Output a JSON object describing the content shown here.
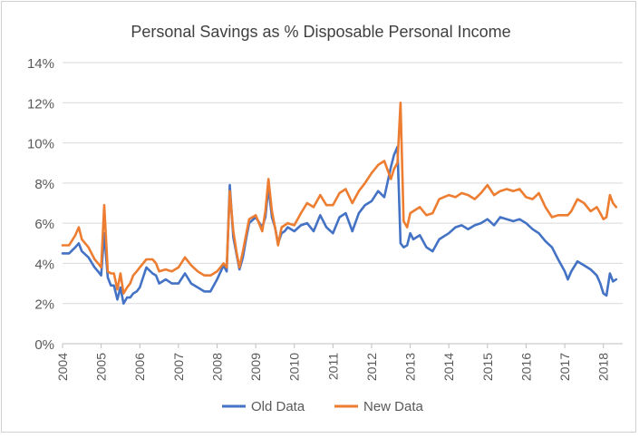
{
  "chart_data": {
    "type": "line",
    "title": "Personal Savings as % Disposable Personal Income",
    "xlabel": "",
    "ylabel": "",
    "xlim": [
      2004.0,
      2018.5
    ],
    "ylim": [
      0,
      14
    ],
    "y_ticks": [
      "0%",
      "2%",
      "4%",
      "6%",
      "8%",
      "10%",
      "12%",
      "14%"
    ],
    "x_ticks": [
      "2004",
      "2005",
      "2006",
      "2007",
      "2008",
      "2009",
      "2010",
      "2011",
      "2012",
      "2013",
      "2014",
      "2015",
      "2016",
      "2017",
      "2018"
    ],
    "grid": "horizontal",
    "legend_position": "bottom",
    "series": [
      {
        "name": "Old Data",
        "color": "#4472c4",
        "x": [
          2004.0,
          2004.17,
          2004.33,
          2004.42,
          2004.5,
          2004.67,
          2004.83,
          2004.92,
          2005.0,
          2005.08,
          2005.17,
          2005.25,
          2005.33,
          2005.42,
          2005.5,
          2005.58,
          2005.67,
          2005.75,
          2005.83,
          2005.92,
          2006.0,
          2006.17,
          2006.33,
          2006.42,
          2006.5,
          2006.67,
          2006.83,
          2007.0,
          2007.17,
          2007.33,
          2007.5,
          2007.67,
          2007.83,
          2008.0,
          2008.17,
          2008.25,
          2008.33,
          2008.42,
          2008.5,
          2008.58,
          2008.67,
          2008.75,
          2008.83,
          2009.0,
          2009.17,
          2009.25,
          2009.33,
          2009.42,
          2009.5,
          2009.58,
          2009.67,
          2009.75,
          2009.83,
          2010.0,
          2010.17,
          2010.33,
          2010.5,
          2010.67,
          2010.83,
          2011.0,
          2011.17,
          2011.33,
          2011.5,
          2011.67,
          2011.83,
          2012.0,
          2012.17,
          2012.33,
          2012.5,
          2012.58,
          2012.67,
          2012.75,
          2012.83,
          2012.92,
          2013.0,
          2013.08,
          2013.25,
          2013.42,
          2013.58,
          2013.75,
          2014.0,
          2014.17,
          2014.33,
          2014.5,
          2014.67,
          2014.83,
          2015.0,
          2015.17,
          2015.33,
          2015.5,
          2015.67,
          2015.83,
          2016.0,
          2016.17,
          2016.33,
          2016.5,
          2016.67,
          2016.83,
          2017.0,
          2017.08,
          2017.17,
          2017.33,
          2017.5,
          2017.67,
          2017.83,
          2017.92,
          2018.0,
          2018.08,
          2018.17,
          2018.25,
          2018.33
        ],
        "values": [
          4.5,
          4.5,
          4.8,
          5.0,
          4.6,
          4.3,
          3.8,
          3.6,
          3.4,
          5.5,
          3.3,
          2.9,
          2.9,
          2.2,
          2.8,
          2.0,
          2.3,
          2.3,
          2.5,
          2.6,
          2.8,
          3.8,
          3.5,
          3.4,
          3.0,
          3.2,
          3.0,
          3.0,
          3.5,
          3.0,
          2.8,
          2.6,
          2.6,
          3.2,
          3.9,
          3.6,
          7.9,
          5.3,
          4.5,
          3.7,
          4.3,
          5.2,
          6.0,
          6.3,
          5.8,
          6.3,
          7.8,
          6.3,
          5.8,
          5.0,
          5.5,
          5.6,
          5.8,
          5.6,
          5.9,
          6.0,
          5.6,
          6.4,
          5.8,
          5.5,
          6.3,
          6.5,
          5.6,
          6.5,
          6.9,
          7.1,
          7.6,
          7.3,
          8.8,
          9.4,
          9.8,
          5.0,
          4.8,
          4.9,
          5.5,
          5.2,
          5.4,
          4.8,
          4.6,
          5.2,
          5.5,
          5.8,
          5.9,
          5.7,
          5.9,
          6.0,
          6.2,
          5.9,
          6.3,
          6.2,
          6.1,
          6.2,
          6.0,
          5.7,
          5.5,
          5.1,
          4.8,
          4.2,
          3.6,
          3.2,
          3.6,
          4.1,
          3.9,
          3.7,
          3.4,
          3.0,
          2.5,
          2.4,
          3.5,
          3.1,
          3.2
        ]
      },
      {
        "name": "New Data",
        "color": "#ed7d31",
        "x": [
          2004.0,
          2004.17,
          2004.33,
          2004.42,
          2004.5,
          2004.67,
          2004.83,
          2004.92,
          2005.0,
          2005.08,
          2005.17,
          2005.25,
          2005.33,
          2005.42,
          2005.5,
          2005.58,
          2005.67,
          2005.75,
          2005.83,
          2005.92,
          2006.0,
          2006.17,
          2006.33,
          2006.42,
          2006.5,
          2006.67,
          2006.83,
          2007.0,
          2007.17,
          2007.33,
          2007.5,
          2007.67,
          2007.83,
          2008.0,
          2008.17,
          2008.25,
          2008.33,
          2008.42,
          2008.5,
          2008.58,
          2008.67,
          2008.75,
          2008.83,
          2009.0,
          2009.17,
          2009.25,
          2009.33,
          2009.42,
          2009.5,
          2009.58,
          2009.67,
          2009.75,
          2009.83,
          2010.0,
          2010.17,
          2010.33,
          2010.5,
          2010.67,
          2010.83,
          2011.0,
          2011.17,
          2011.33,
          2011.5,
          2011.67,
          2011.83,
          2012.0,
          2012.17,
          2012.33,
          2012.5,
          2012.58,
          2012.67,
          2012.75,
          2012.83,
          2012.92,
          2013.0,
          2013.08,
          2013.25,
          2013.42,
          2013.58,
          2013.75,
          2014.0,
          2014.17,
          2014.33,
          2014.5,
          2014.67,
          2014.83,
          2015.0,
          2015.17,
          2015.33,
          2015.5,
          2015.67,
          2015.83,
          2016.0,
          2016.17,
          2016.33,
          2016.5,
          2016.67,
          2016.83,
          2017.0,
          2017.08,
          2017.17,
          2017.33,
          2017.5,
          2017.67,
          2017.83,
          2017.92,
          2018.0,
          2018.08,
          2018.17,
          2018.25,
          2018.33
        ],
        "values": [
          4.9,
          4.9,
          5.4,
          5.8,
          5.2,
          4.8,
          4.2,
          4.0,
          3.8,
          6.9,
          3.6,
          3.5,
          3.5,
          2.7,
          3.5,
          2.5,
          2.8,
          3.0,
          3.4,
          3.6,
          3.8,
          4.2,
          4.2,
          4.0,
          3.6,
          3.7,
          3.6,
          3.8,
          4.3,
          3.9,
          3.6,
          3.4,
          3.4,
          3.6,
          4.0,
          3.8,
          7.6,
          5.6,
          4.6,
          3.8,
          4.6,
          5.4,
          6.2,
          6.4,
          5.6,
          6.6,
          8.2,
          6.6,
          5.8,
          4.9,
          5.8,
          5.9,
          6.0,
          5.9,
          6.5,
          7.0,
          6.8,
          7.4,
          6.9,
          6.9,
          7.5,
          7.7,
          7.0,
          7.6,
          8.0,
          8.5,
          8.9,
          9.1,
          8.2,
          8.7,
          9.0,
          12.0,
          6.1,
          5.8,
          6.5,
          6.6,
          6.8,
          6.4,
          6.5,
          7.2,
          7.4,
          7.3,
          7.5,
          7.4,
          7.2,
          7.5,
          7.9,
          7.4,
          7.6,
          7.7,
          7.6,
          7.7,
          7.3,
          7.2,
          7.5,
          6.8,
          6.3,
          6.4,
          6.4,
          6.4,
          6.6,
          7.2,
          7.0,
          6.6,
          6.8,
          6.5,
          6.2,
          6.3,
          7.4,
          7.0,
          6.8
        ]
      }
    ]
  }
}
